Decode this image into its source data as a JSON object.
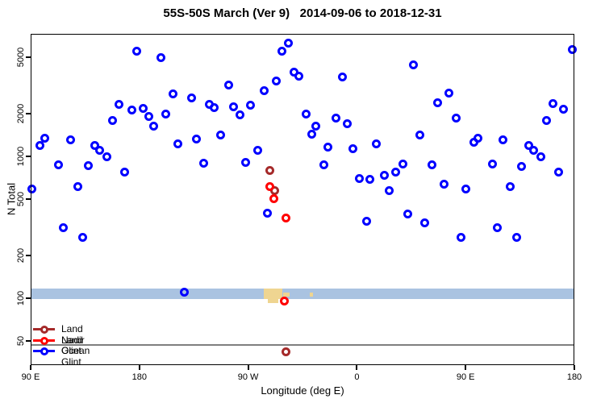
{
  "chart_data": {
    "type": "scatter",
    "title": "55S-50S March (Ver 9)   2014-09-06 to 2018-12-31",
    "xlabel": "Longitude (deg E)",
    "ylabel": "N Total",
    "y_scale": "log10",
    "grid": false,
    "x_axis": {
      "unit": "degrees longitude plotted continuously eastward from 90E (270=90W, 360=0, 450=90E, 540=180)",
      "range": [
        90,
        540
      ],
      "tick_values": [
        90,
        180,
        270,
        360,
        450,
        540
      ],
      "tick_labels": [
        "90 E",
        "180",
        "90 W",
        "0",
        "90 E",
        "180"
      ]
    },
    "y_axis": {
      "tick_values": [
        50,
        100,
        200,
        500,
        1000,
        2000,
        5000
      ],
      "tick_labels": [
        "50",
        "100",
        "200",
        "500",
        "1000",
        "2000",
        "5000"
      ],
      "approx_range": [
        34,
        7300
      ]
    },
    "legend": {
      "position": "bottom-left",
      "entries": [
        "Land Nadir",
        "Land Glint",
        "Ocean Glint"
      ]
    },
    "reference_line": {
      "n": 47,
      "color": "#7f7f7f"
    },
    "map_strip": {
      "description": "thin world-map band showing the 55S-50S latitude slice (ocean with land masses)",
      "ocean_color": "#aac3e1",
      "land_color": "#efd591",
      "n_range": [
        99,
        117
      ],
      "land_segments": [
        {
          "lon": [
            283,
            298
          ],
          "n": [
            99,
            117
          ]
        },
        {
          "lon": [
            286,
            295
          ],
          "n": [
            93,
            99
          ]
        },
        {
          "lon": [
            299,
            304
          ],
          "n": [
            103,
            110
          ]
        },
        {
          "lon": [
            321,
            324
          ],
          "n": [
            103,
            109
          ]
        }
      ]
    },
    "series": [
      {
        "name": "Land Nadir",
        "color": "#A52A2A",
        "points": [
          [
            288,
            800
          ],
          [
            292,
            575
          ],
          [
            301,
            42
          ]
        ]
      },
      {
        "name": "Land Glint",
        "color": "#FF0000",
        "points": [
          [
            288,
            610
          ],
          [
            291,
            505
          ],
          [
            301,
            370
          ],
          [
            300,
            96
          ]
        ]
      },
      {
        "name": "Ocean Glint",
        "color": "#0000FF",
        "points": [
          [
            178,
            5550
          ],
          [
            198,
            4940
          ],
          [
            298,
            5550
          ],
          [
            303,
            6250
          ],
          [
            308,
            3900
          ],
          [
            312,
            3700
          ],
          [
            254,
            3200
          ],
          [
            293,
            3380
          ],
          [
            283,
            2890
          ],
          [
            208,
            2740
          ],
          [
            223,
            2570
          ],
          [
            238,
            2340
          ],
          [
            242,
            2220
          ],
          [
            163,
            2340
          ],
          [
            174,
            2110
          ],
          [
            183,
            2190
          ],
          [
            188,
            1920
          ],
          [
            202,
            1980
          ],
          [
            258,
            2250
          ],
          [
            263,
            1950
          ],
          [
            272,
            2310
          ],
          [
            158,
            1800
          ],
          [
            192,
            1640
          ],
          [
            318,
            2000
          ],
          [
            102,
            1350
          ],
          [
            98,
            1200
          ],
          [
            123,
            1300
          ],
          [
            143,
            1190
          ],
          [
            147,
            1100
          ],
          [
            153,
            990
          ],
          [
            212,
            1220
          ],
          [
            227,
            1320
          ],
          [
            247,
            1420
          ],
          [
            278,
            1100
          ],
          [
            268,
            910
          ],
          [
            113,
            870
          ],
          [
            138,
            860
          ],
          [
            168,
            780
          ],
          [
            233,
            890
          ],
          [
            129,
            610
          ],
          [
            91,
            585
          ],
          [
            286,
            400
          ],
          [
            117,
            315
          ],
          [
            133,
            267
          ],
          [
            217,
            110
          ],
          [
            407,
            4390
          ],
          [
            348,
            3650
          ],
          [
            436,
            2780
          ],
          [
            427,
            2400
          ],
          [
            522,
            2370
          ],
          [
            531,
            2140
          ],
          [
            343,
            1870
          ],
          [
            326,
            1640
          ],
          [
            352,
            1690
          ],
          [
            442,
            1850
          ],
          [
            517,
            1800
          ],
          [
            323,
            1440
          ],
          [
            412,
            1420
          ],
          [
            460,
            1350
          ],
          [
            457,
            1250
          ],
          [
            481,
            1300
          ],
          [
            502,
            1190
          ],
          [
            336,
            1160
          ],
          [
            357,
            1140
          ],
          [
            376,
            1230
          ],
          [
            506,
            1110
          ],
          [
            512,
            990
          ],
          [
            333,
            870
          ],
          [
            398,
            880
          ],
          [
            422,
            870
          ],
          [
            472,
            880
          ],
          [
            496,
            845
          ],
          [
            527,
            780
          ],
          [
            362,
            695
          ],
          [
            371,
            685
          ],
          [
            383,
            740
          ],
          [
            392,
            780
          ],
          [
            432,
            640
          ],
          [
            450,
            590
          ],
          [
            387,
            570
          ],
          [
            487,
            610
          ],
          [
            538,
            5650
          ],
          [
            368,
            350
          ],
          [
            402,
            390
          ],
          [
            416,
            340
          ],
          [
            446,
            270
          ],
          [
            476,
            315
          ],
          [
            492,
            267
          ]
        ]
      }
    ]
  }
}
